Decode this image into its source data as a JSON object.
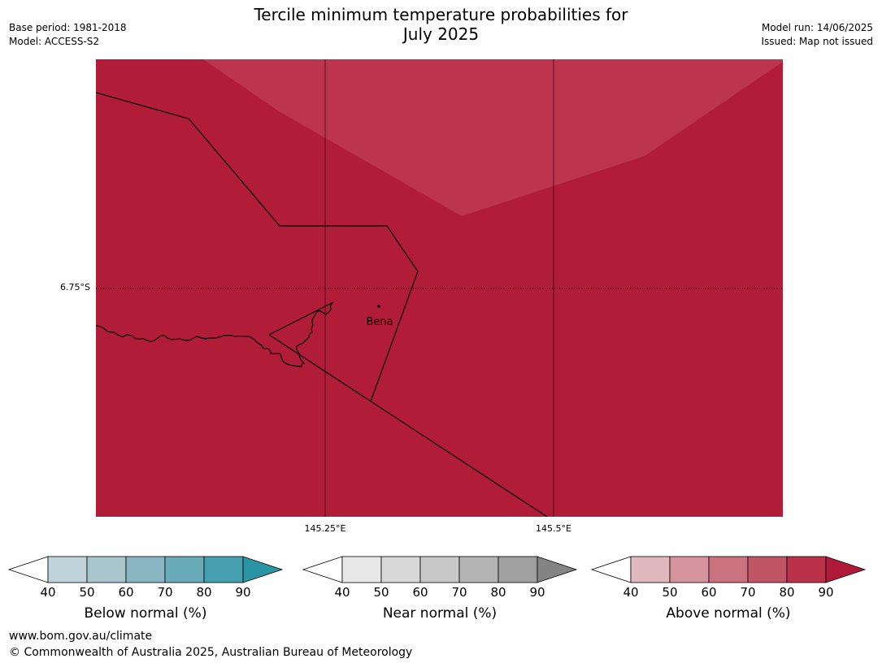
{
  "title_line1": "Tercile minimum temperature probabilities for",
  "title_line2": "July 2025",
  "meta_left": {
    "base_period": "Base period: 1981-2018",
    "model": "Model: ACCESS-S2"
  },
  "meta_right": {
    "model_run": "Model run: 14/06/2025",
    "issued": "Issued: Map not issued"
  },
  "map": {
    "place_label": "Bena",
    "lat_label": "6.75°S",
    "lon_labels": [
      "145.25°E",
      "145.5°E"
    ],
    "fill_dominant": "#b11d38",
    "fill_lighter": "#bc354c"
  },
  "colorbars": [
    {
      "title": "Below normal (%)",
      "ticks": [
        "40",
        "50",
        "60",
        "70",
        "80",
        "90"
      ],
      "colors": [
        "#ffffff",
        "#bed4da",
        "#a8c6cc",
        "#8ab6c3",
        "#6aabba",
        "#47a0b0",
        "#2a93a4"
      ]
    },
    {
      "title": "Near normal (%)",
      "ticks": [
        "40",
        "50",
        "60",
        "70",
        "80",
        "90"
      ],
      "colors": [
        "#ffffff",
        "#e8e8e8",
        "#d8d8d8",
        "#c8c8c8",
        "#b4b4b4",
        "#a0a0a0",
        "#848484"
      ]
    },
    {
      "title": "Above normal (%)",
      "ticks": [
        "40",
        "50",
        "60",
        "70",
        "80",
        "90"
      ],
      "colors": [
        "#ffffff",
        "#e0b8be",
        "#d6959e",
        "#ca737f",
        "#c05564",
        "#ba3249",
        "#b01a38"
      ]
    }
  ],
  "footer": {
    "url": "www.bom.gov.au/climate",
    "copyright": "© Commonwealth of Australia 2025, Australian Bureau of Meteorology"
  }
}
